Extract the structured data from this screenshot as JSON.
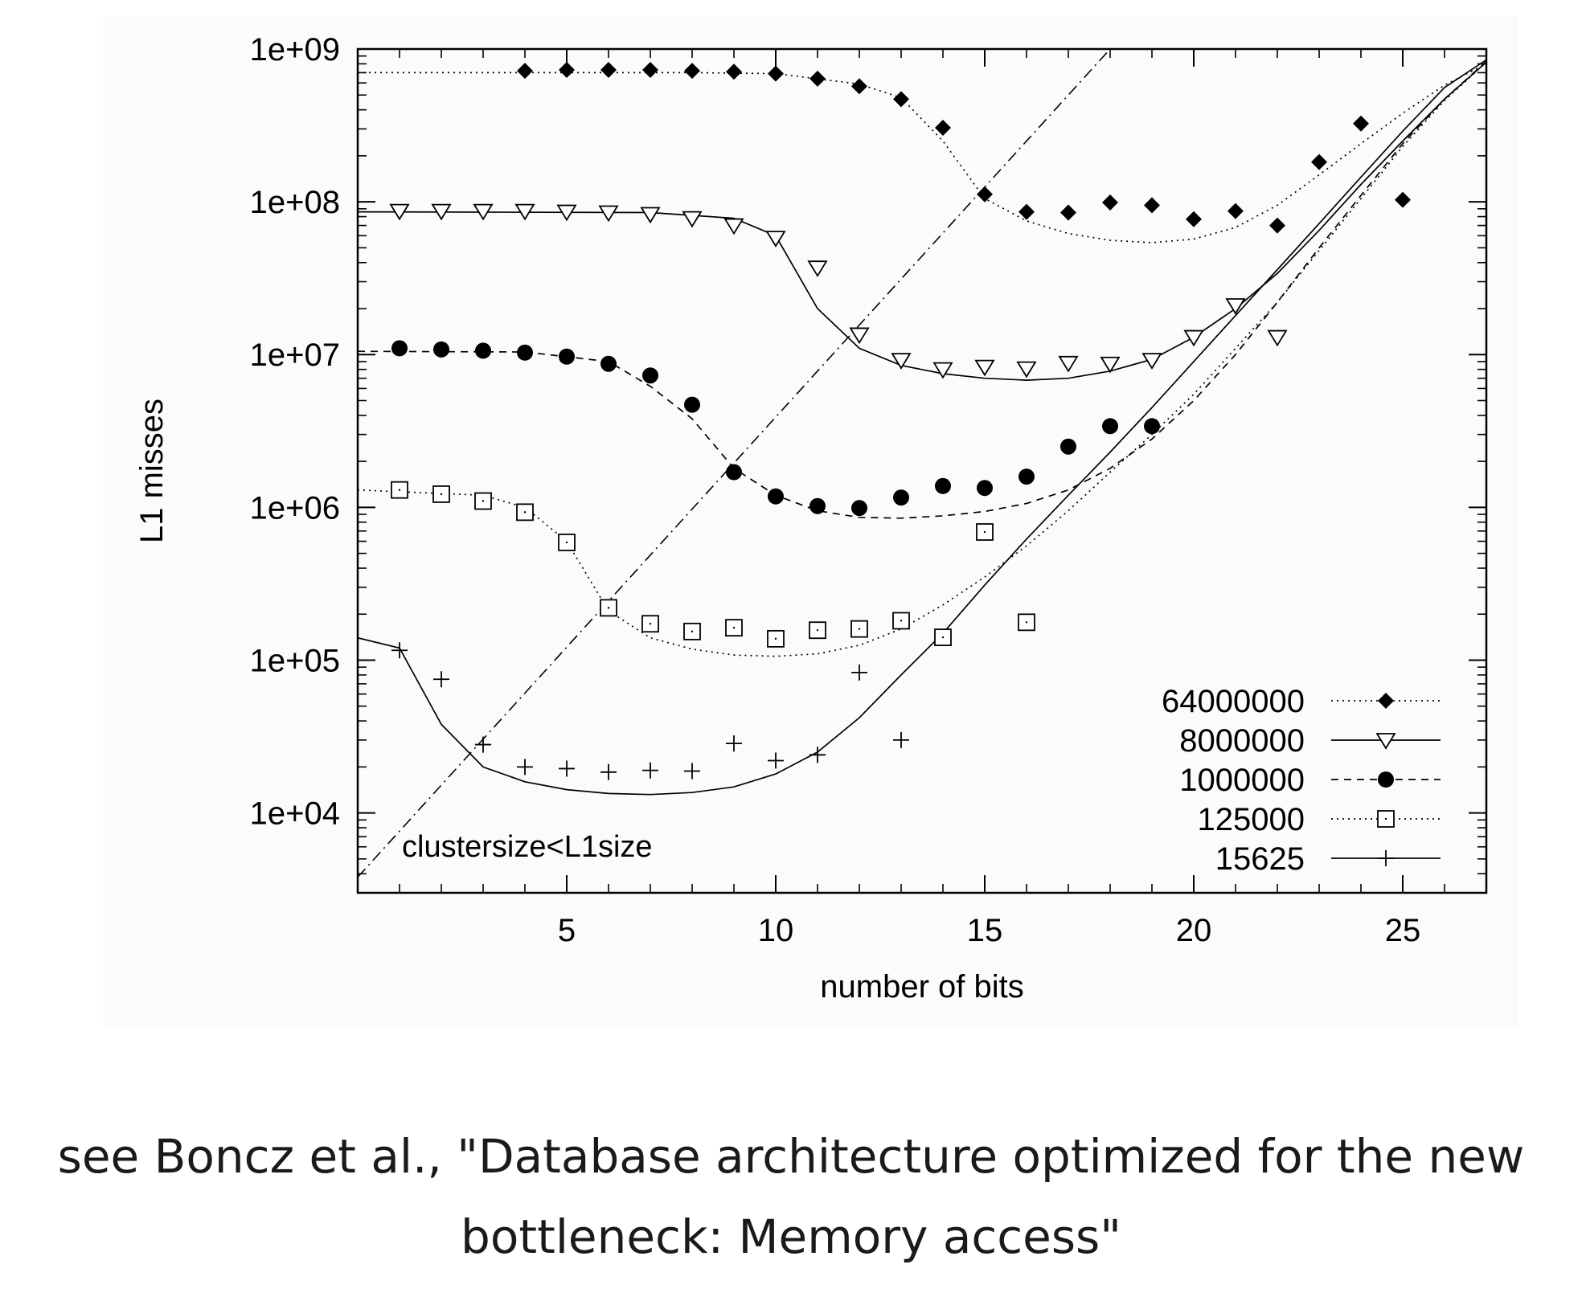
{
  "caption": {
    "line1": "see Boncz et al., \"Database architecture optimized for the new",
    "line2": "bottleneck: Memory access\""
  },
  "chart_data": {
    "type": "scatter",
    "title": "",
    "xlabel": "number of bits",
    "ylabel": "L1 misses",
    "xlim": [
      0,
      27
    ],
    "ylim": [
      3000,
      1000000000
    ],
    "yscale": "log",
    "grid": false,
    "legend_position": "bottom-right",
    "x_ticks": [
      5,
      10,
      15,
      20,
      25
    ],
    "y_ticks": [
      {
        "value": 10000,
        "label": "1e+04"
      },
      {
        "value": 100000,
        "label": "1e+05"
      },
      {
        "value": 1000000,
        "label": "1e+06"
      },
      {
        "value": 10000000,
        "label": "1e+07"
      },
      {
        "value": 100000000,
        "label": "1e+08"
      },
      {
        "value": 1000000000,
        "label": "1e+09"
      }
    ],
    "annotation": "clustersize<L1size",
    "reference_line": {
      "style": "dash-dot",
      "points": [
        [
          0,
          3800
        ],
        [
          18,
          1000000000
        ]
      ]
    },
    "series": [
      {
        "name": "64000000",
        "marker": "filled-diamond",
        "line": "dotted",
        "points": [
          [
            4,
            720000000
          ],
          [
            5,
            730000000
          ],
          [
            6,
            730000000
          ],
          [
            7,
            730000000
          ],
          [
            8,
            720000000
          ],
          [
            9,
            710000000
          ],
          [
            10,
            690000000
          ],
          [
            11,
            640000000
          ],
          [
            12,
            570000000
          ],
          [
            13,
            470000000
          ],
          [
            14,
            305000000
          ],
          [
            15,
            112000000
          ],
          [
            16,
            86000000
          ],
          [
            17,
            85000000
          ],
          [
            18,
            99000000
          ],
          [
            19,
            95000000
          ],
          [
            20,
            77000000
          ],
          [
            21,
            87000000
          ],
          [
            22,
            70000000
          ],
          [
            23,
            182000000
          ],
          [
            24,
            325000000
          ],
          [
            25,
            103000000
          ]
        ],
        "fit": [
          [
            0,
            700000000
          ],
          [
            8,
            700000000
          ],
          [
            10,
            690000000
          ],
          [
            12,
            590000000
          ],
          [
            13,
            480000000
          ],
          [
            14,
            250000000
          ],
          [
            15,
            105000000
          ],
          [
            16,
            75000000
          ],
          [
            17,
            62000000
          ],
          [
            18,
            56000000
          ],
          [
            19,
            54000000
          ],
          [
            20,
            57000000
          ],
          [
            21,
            68000000
          ],
          [
            22,
            95000000
          ],
          [
            23,
            150000000
          ],
          [
            24,
            240000000
          ],
          [
            25,
            380000000
          ],
          [
            26,
            580000000
          ],
          [
            27,
            800000000
          ]
        ]
      },
      {
        "name": "8000000",
        "marker": "open-triangle-down",
        "line": "solid",
        "points": [
          [
            1,
            87000000
          ],
          [
            2,
            87000000
          ],
          [
            3,
            87000000
          ],
          [
            4,
            87000000
          ],
          [
            5,
            86000000
          ],
          [
            6,
            85000000
          ],
          [
            7,
            83000000
          ],
          [
            8,
            78000000
          ],
          [
            9,
            70000000
          ],
          [
            10,
            58000000
          ],
          [
            11,
            37000000
          ],
          [
            12,
            13500000
          ],
          [
            13,
            9200000
          ],
          [
            14,
            8000000
          ],
          [
            15,
            8300000
          ],
          [
            16,
            8100000
          ],
          [
            17,
            8800000
          ],
          [
            18,
            8700000
          ],
          [
            19,
            9200000
          ],
          [
            20,
            13000000
          ],
          [
            21,
            21000000
          ],
          [
            22,
            13000000
          ]
        ],
        "fit": [
          [
            0,
            86000000
          ],
          [
            7,
            85000000
          ],
          [
            9,
            78000000
          ],
          [
            10,
            60000000
          ],
          [
            11,
            20000000
          ],
          [
            12,
            11000000
          ],
          [
            13,
            8500000
          ],
          [
            14,
            7500000
          ],
          [
            15,
            7000000
          ],
          [
            16,
            6800000
          ],
          [
            17,
            7000000
          ],
          [
            18,
            7800000
          ],
          [
            19,
            9300000
          ],
          [
            20,
            13000000
          ],
          [
            21,
            20000000
          ],
          [
            22,
            34000000
          ],
          [
            23,
            65000000
          ],
          [
            24,
            130000000
          ],
          [
            25,
            250000000
          ],
          [
            26,
            470000000
          ],
          [
            27,
            820000000
          ]
        ]
      },
      {
        "name": "1000000",
        "marker": "filled-circle",
        "line": "dashed",
        "points": [
          [
            1,
            11000000
          ],
          [
            2,
            10800000
          ],
          [
            3,
            10600000
          ],
          [
            4,
            10300000
          ],
          [
            5,
            9700000
          ],
          [
            6,
            8700000
          ],
          [
            7,
            7300000
          ],
          [
            8,
            4700000
          ],
          [
            9,
            1700000
          ],
          [
            10,
            1180000
          ],
          [
            11,
            1020000
          ],
          [
            12,
            990000
          ],
          [
            13,
            1160000
          ],
          [
            14,
            1380000
          ],
          [
            15,
            1340000
          ],
          [
            16,
            1590000
          ],
          [
            17,
            2500000
          ],
          [
            18,
            3400000
          ],
          [
            19,
            3400000
          ]
        ],
        "fit": [
          [
            0,
            10500000
          ],
          [
            4,
            10400000
          ],
          [
            6,
            9000000
          ],
          [
            7,
            6200000
          ],
          [
            8,
            3800000
          ],
          [
            9,
            1800000
          ],
          [
            10,
            1200000
          ],
          [
            11,
            950000
          ],
          [
            12,
            860000
          ],
          [
            13,
            850000
          ],
          [
            14,
            880000
          ],
          [
            15,
            940000
          ],
          [
            16,
            1060000
          ],
          [
            17,
            1300000
          ],
          [
            18,
            1800000
          ],
          [
            19,
            2800000
          ],
          [
            20,
            5000000
          ],
          [
            21,
            10000000
          ],
          [
            22,
            22000000
          ],
          [
            23,
            50000000
          ],
          [
            24,
            110000000
          ],
          [
            25,
            240000000
          ],
          [
            26,
            470000000
          ],
          [
            27,
            830000000
          ]
        ]
      },
      {
        "name": "125000",
        "marker": "open-square",
        "line": "dotted",
        "points": [
          [
            1,
            1300000
          ],
          [
            2,
            1220000
          ],
          [
            3,
            1100000
          ],
          [
            4,
            930000
          ],
          [
            5,
            590000
          ],
          [
            6,
            220000
          ],
          [
            7,
            173000
          ],
          [
            8,
            154000
          ],
          [
            9,
            163000
          ],
          [
            10,
            138000
          ],
          [
            11,
            157000
          ],
          [
            12,
            160000
          ],
          [
            13,
            181000
          ],
          [
            14,
            141000
          ],
          [
            15,
            690000
          ],
          [
            16,
            177000
          ]
        ],
        "fit": [
          [
            0,
            1300000
          ],
          [
            3,
            1200000
          ],
          [
            4,
            1000000
          ],
          [
            5,
            600000
          ],
          [
            6,
            210000
          ],
          [
            7,
            140000
          ],
          [
            8,
            118000
          ],
          [
            9,
            108000
          ],
          [
            10,
            106000
          ],
          [
            11,
            110000
          ],
          [
            12,
            125000
          ],
          [
            13,
            160000
          ],
          [
            14,
            230000
          ],
          [
            15,
            350000
          ],
          [
            16,
            560000
          ],
          [
            17,
            950000
          ],
          [
            18,
            1700000
          ],
          [
            19,
            3000000
          ],
          [
            20,
            5500000
          ],
          [
            21,
            11000000
          ],
          [
            22,
            22000000
          ],
          [
            23,
            48000000
          ],
          [
            24,
            105000000
          ],
          [
            25,
            230000000
          ],
          [
            26,
            460000000
          ],
          [
            27,
            820000000
          ]
        ]
      },
      {
        "name": "15625",
        "marker": "plus",
        "line": "solid",
        "points": [
          [
            1,
            116000
          ],
          [
            2,
            75000
          ],
          [
            3,
            28000
          ],
          [
            4,
            20000
          ],
          [
            5,
            19500
          ],
          [
            6,
            18500
          ],
          [
            7,
            19000
          ],
          [
            8,
            18800
          ],
          [
            9,
            28500
          ],
          [
            10,
            22000
          ],
          [
            11,
            24000
          ],
          [
            12,
            83000
          ],
          [
            13,
            30000
          ]
        ],
        "fit": [
          [
            0,
            140000
          ],
          [
            1,
            120000
          ],
          [
            2,
            38000
          ],
          [
            3,
            20000
          ],
          [
            4,
            16000
          ],
          [
            5,
            14200
          ],
          [
            6,
            13400
          ],
          [
            7,
            13200
          ],
          [
            8,
            13600
          ],
          [
            9,
            14800
          ],
          [
            10,
            18000
          ],
          [
            11,
            25000
          ],
          [
            12,
            42000
          ],
          [
            13,
            80000
          ],
          [
            14,
            150000
          ],
          [
            15,
            310000
          ],
          [
            16,
            620000
          ],
          [
            17,
            1200000
          ],
          [
            18,
            2300000
          ],
          [
            19,
            4500000
          ],
          [
            20,
            9000000
          ],
          [
            21,
            18000000
          ],
          [
            22,
            36000000
          ],
          [
            23,
            72000000
          ],
          [
            24,
            145000000
          ],
          [
            25,
            290000000
          ],
          [
            26,
            560000000
          ],
          [
            27,
            850000000
          ]
        ]
      }
    ]
  }
}
